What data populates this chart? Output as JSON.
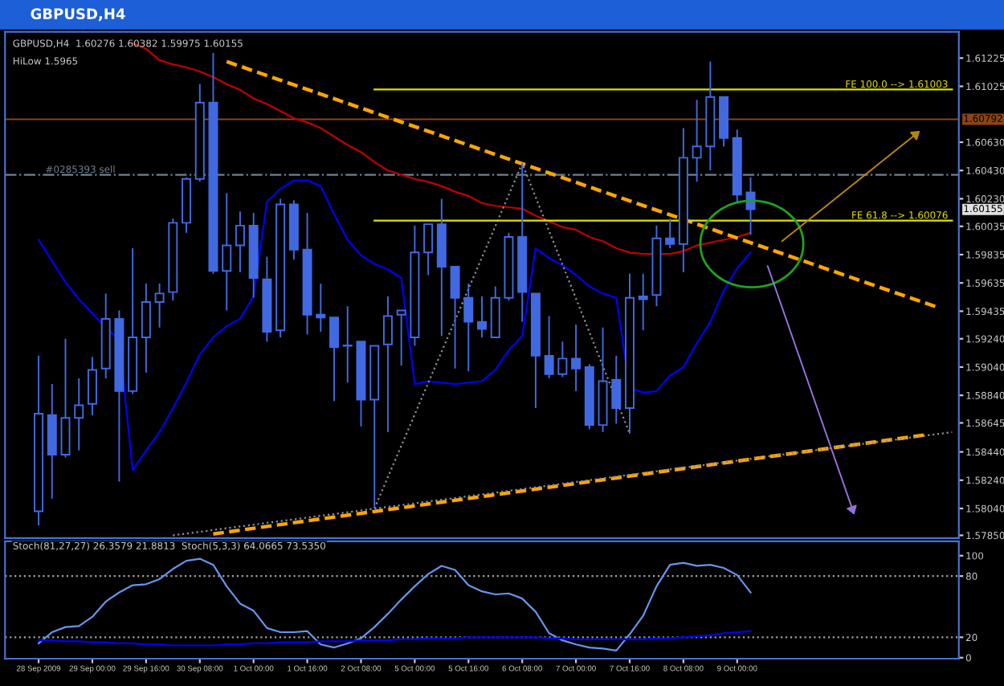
{
  "chart_data": [
    {
      "type": "candlestick",
      "title": "GBPUSD,H4",
      "color": "#4169e1",
      "tick_labels": "y",
      "legend": false,
      "grid": false,
      "annotations": [
        "GBPUSD,H4  1.60276 1.60382 1.59975 1.60155",
        "HiLow 1.5965",
        "1.60155"
      ],
      "categories": [
        null,
        null,
        null,
        null,
        null,
        null,
        null,
        null,
        null,
        null,
        null,
        null,
        null,
        null,
        null,
        null,
        null,
        null,
        null,
        null,
        null,
        null,
        null,
        null,
        null,
        null,
        null,
        null,
        null,
        null,
        null,
        null,
        null,
        null,
        null,
        null,
        null,
        null,
        null,
        null,
        null,
        null,
        null,
        null,
        null,
        null,
        null,
        null,
        null,
        null,
        null,
        null,
        null,
        null,
        null,
        null,
        null,
        null,
        null,
        null,
        null,
        null,
        null,
        null,
        null,
        null,
        null,
        null,
        null
      ],
      "ohlc": [
        [
          1.5802,
          1.5912,
          1.5792,
          1.5871
        ],
        [
          1.587,
          1.5892,
          1.5811,
          1.5842
        ],
        [
          1.5842,
          1.5924,
          1.584,
          1.5868
        ],
        [
          1.5868,
          1.5896,
          1.5845,
          1.5877
        ],
        [
          1.5878,
          1.5911,
          1.587,
          1.5902
        ],
        [
          1.5903,
          1.5956,
          1.5896,
          1.5938
        ],
        [
          1.5938,
          1.5944,
          1.5823,
          1.5887
        ],
        [
          1.5887,
          1.5988,
          1.5885,
          1.5925
        ],
        [
          1.5925,
          1.5963,
          1.59,
          1.595
        ],
        [
          1.595,
          1.5963,
          1.5932,
          1.5956
        ],
        [
          1.5957,
          1.6009,
          1.5951,
          1.6006
        ],
        [
          1.6006,
          1.6038,
          1.5999,
          1.6037
        ],
        [
          1.6037,
          1.6104,
          1.6035,
          1.6091
        ],
        [
          1.6091,
          1.6126,
          1.597,
          1.5972
        ],
        [
          1.5972,
          1.6027,
          1.5944,
          1.599
        ],
        [
          1.599,
          1.6014,
          1.5971,
          1.6004
        ],
        [
          1.6004,
          1.6013,
          1.5953,
          1.5967
        ],
        [
          1.5966,
          1.5982,
          1.5922,
          1.5929
        ],
        [
          1.593,
          1.6023,
          1.5925,
          1.6019
        ],
        [
          1.6019,
          1.6022,
          1.598,
          1.5987
        ],
        [
          1.5987,
          1.6013,
          1.5927,
          1.5941
        ],
        [
          1.5941,
          1.5963,
          1.5929,
          1.5939
        ],
        [
          1.5939,
          1.5939,
          1.588,
          1.5918
        ],
        [
          1.5919,
          1.5947,
          1.5893,
          1.5919
        ],
        [
          1.5922,
          1.5922,
          1.5862,
          1.5881
        ],
        [
          1.5881,
          1.5919,
          1.5804,
          1.5919
        ],
        [
          1.592,
          1.5954,
          1.5858,
          1.594
        ],
        [
          1.5941,
          1.5944,
          1.5905,
          1.5944
        ],
        [
          1.5925,
          1.6004,
          1.5919,
          1.5985
        ],
        [
          1.5985,
          1.6005,
          1.5969,
          1.6005
        ],
        [
          1.6005,
          1.6023,
          1.5926,
          1.5975
        ],
        [
          1.5975,
          1.5975,
          1.5903,
          1.5953
        ],
        [
          1.5953,
          1.5963,
          1.5901,
          1.5936
        ],
        [
          1.5936,
          1.5954,
          1.5925,
          1.5931
        ],
        [
          1.5925,
          1.5961,
          1.5925,
          1.5953
        ],
        [
          1.5953,
          1.5999,
          1.5951,
          1.5996
        ],
        [
          1.5996,
          1.6048,
          1.5936,
          1.5957
        ],
        [
          1.5956,
          1.5956,
          1.5875,
          1.5912
        ],
        [
          1.5912,
          1.594,
          1.5896,
          1.5899
        ],
        [
          1.5899,
          1.5922,
          1.5897,
          1.591
        ],
        [
          1.591,
          1.5934,
          1.5887,
          1.5903
        ],
        [
          1.5904,
          1.5906,
          1.586,
          1.5863
        ],
        [
          1.5863,
          1.5932,
          1.5858,
          1.5894
        ],
        [
          1.5895,
          1.5912,
          1.5864,
          1.5875
        ],
        [
          1.5875,
          1.597,
          1.5857,
          1.5953
        ],
        [
          1.5954,
          1.597,
          1.593,
          1.5952
        ],
        [
          1.5955,
          1.6004,
          1.5947,
          1.5995
        ],
        [
          1.5995,
          1.6009,
          1.5988,
          1.5991
        ],
        [
          1.5991,
          1.6073,
          1.5971,
          1.6052
        ],
        [
          1.6052,
          1.6093,
          1.6035,
          1.606
        ],
        [
          1.606,
          1.612,
          1.6043,
          1.6095
        ],
        [
          1.6095,
          1.6095,
          1.606,
          1.6066
        ],
        [
          1.6066,
          1.6072,
          1.6021,
          1.6026
        ],
        [
          1.60276,
          1.60382,
          1.59975,
          1.60155
        ],
        null,
        null,
        null,
        null,
        null,
        null,
        null,
        null,
        null,
        null,
        null,
        null,
        null,
        null,
        null
      ],
      "series": [
        {
          "type": "line",
          "color": "#c00000",
          "line_style": "solid",
          "values": [
            null,
            null,
            null,
            null,
            null,
            null,
            null,
            1.6133,
            1.6129,
            1.6121,
            1.6118,
            1.6116,
            1.6113,
            1.6109,
            1.6104,
            1.61,
            1.6094,
            1.609,
            1.6085,
            1.608,
            1.6077,
            1.6073,
            1.6067,
            1.6061,
            1.6056,
            1.6049,
            1.6043,
            1.604,
            1.6037,
            1.6035,
            1.6032,
            1.6028,
            1.6025,
            1.602,
            1.6018,
            1.6017,
            1.6016,
            1.6011,
            1.6007,
            1.6003,
            1.6001,
            1.5996,
            1.5993,
            1.5988,
            1.5985,
            1.5984,
            1.5984,
            1.5984,
            1.5986,
            1.599,
            1.5992,
            1.5994,
            1.5996,
            1.5999,
            null,
            null,
            null,
            null,
            null,
            null,
            null,
            null,
            null,
            null,
            null,
            null,
            null,
            null,
            null
          ]
        },
        {
          "type": "line",
          "color": "#0000ff",
          "line_style": "solid",
          "values": [
            1.5994,
            1.5979,
            1.5964,
            1.5952,
            1.5942,
            1.5932,
            1.5923,
            1.5831,
            1.5845,
            1.5858,
            1.5875,
            1.5893,
            1.5913,
            1.5925,
            1.5933,
            1.5938,
            1.5954,
            1.6021,
            1.603,
            1.6036,
            1.6036,
            1.6032,
            1.6012,
            1.5994,
            1.5983,
            1.5977,
            1.5973,
            1.5967,
            1.5892,
            1.5894,
            1.5893,
            1.5892,
            1.5893,
            1.5894,
            1.5902,
            1.5916,
            1.5926,
            1.5988,
            1.5981,
            1.5976,
            1.5969,
            1.5961,
            1.5956,
            1.5953,
            1.5889,
            1.5886,
            1.5887,
            1.5898,
            1.5904,
            1.5921,
            1.5936,
            1.5958,
            1.5974,
            1.5985,
            null,
            null,
            null,
            null,
            null,
            null,
            null,
            null,
            null,
            null,
            null,
            null,
            null,
            null,
            null
          ]
        },
        {
          "type": "line",
          "color": "#ffa500",
          "line_style": "dashed",
          "values": [
            null,
            null,
            null,
            null,
            null,
            null,
            null,
            null,
            null,
            null,
            null,
            null,
            null,
            null,
            1.612,
            null,
            null,
            null,
            null,
            null,
            null,
            null,
            null,
            null,
            null,
            null,
            null,
            null,
            null,
            null,
            null,
            null,
            null,
            null,
            null,
            null,
            null,
            null,
            null,
            null,
            null,
            null,
            null,
            null,
            null,
            null,
            null,
            null,
            null,
            null,
            null,
            null,
            null,
            null,
            null,
            null,
            null,
            null,
            null,
            null,
            null,
            null,
            null,
            null,
            null,
            null,
            null,
            1.5946,
            null
          ]
        },
        {
          "type": "line",
          "color": "#ffa500",
          "line_style": "dashed",
          "values": [
            null,
            null,
            null,
            null,
            null,
            null,
            null,
            null,
            null,
            null,
            null,
            null,
            null,
            1.5786,
            null,
            null,
            null,
            null,
            null,
            null,
            null,
            null,
            null,
            null,
            null,
            null,
            null,
            null,
            null,
            null,
            null,
            null,
            null,
            null,
            null,
            null,
            null,
            null,
            null,
            null,
            null,
            null,
            null,
            null,
            null,
            null,
            null,
            null,
            null,
            null,
            null,
            null,
            null,
            null,
            null,
            null,
            null,
            null,
            null,
            null,
            null,
            null,
            null,
            null,
            null,
            null,
            1.5856,
            null,
            null
          ]
        },
        {
          "type": "line",
          "color": "#909090",
          "line_style": "dotted",
          "values": [
            null,
            null,
            null,
            null,
            null,
            null,
            null,
            null,
            null,
            null,
            null,
            null,
            null,
            null,
            null,
            null,
            null,
            null,
            null,
            null,
            null,
            null,
            null,
            null,
            null,
            1.5804,
            null,
            null,
            null,
            null,
            null,
            null,
            null,
            null,
            null,
            null,
            1.6048,
            null,
            null,
            null,
            null,
            null,
            null,
            null,
            1.5857,
            null,
            null,
            null,
            null,
            null,
            null,
            null,
            null,
            null,
            null,
            null,
            null,
            null,
            null,
            null,
            null,
            null,
            null,
            null,
            null,
            null,
            null,
            null,
            null
          ]
        },
        {
          "type": "line",
          "color": "#909090",
          "line_style": "dotted",
          "values": [
            null,
            null,
            null,
            null,
            null,
            null,
            null,
            null,
            null,
            null,
            1.5785,
            null,
            null,
            null,
            null,
            null,
            null,
            null,
            null,
            null,
            null,
            null,
            null,
            null,
            null,
            null,
            null,
            null,
            null,
            null,
            null,
            null,
            null,
            null,
            null,
            null,
            null,
            null,
            null,
            null,
            null,
            null,
            null,
            null,
            null,
            null,
            null,
            null,
            null,
            null,
            null,
            null,
            null,
            null,
            null,
            null,
            null,
            null,
            null,
            null,
            null,
            null,
            null,
            null,
            null,
            null,
            null,
            null,
            1.5858
          ]
        },
        {
          "type": "line",
          "name": "FE 100.0 --> 1.61003",
          "color": "#e0e000",
          "line_style": "solid",
          "values": [
            null,
            null,
            null,
            null,
            null,
            null,
            null,
            null,
            null,
            null,
            null,
            null,
            null,
            null,
            null,
            null,
            null,
            null,
            null,
            null,
            null,
            null,
            null,
            null,
            null,
            1.61003,
            null,
            null,
            null,
            null,
            null,
            null,
            null,
            null,
            null,
            null,
            null,
            null,
            null,
            null,
            null,
            null,
            null,
            null,
            null,
            null,
            null,
            null,
            null,
            null,
            null,
            null,
            null,
            null,
            null,
            null,
            null,
            null,
            null,
            null,
            null,
            null,
            null,
            null,
            null,
            null,
            null,
            null,
            1.61003
          ]
        },
        {
          "type": "line",
          "name": "FE 61.8 --> 1.60076",
          "color": "#e0e000",
          "line_style": "solid",
          "values": [
            null,
            null,
            null,
            null,
            null,
            null,
            null,
            null,
            null,
            null,
            null,
            null,
            null,
            null,
            null,
            null,
            null,
            null,
            null,
            null,
            null,
            null,
            null,
            null,
            null,
            1.60076,
            null,
            null,
            null,
            null,
            null,
            null,
            null,
            null,
            null,
            null,
            null,
            null,
            null,
            null,
            null,
            null,
            null,
            null,
            null,
            null,
            null,
            null,
            null,
            null,
            null,
            null,
            null,
            null,
            null,
            null,
            null,
            null,
            null,
            null,
            null,
            null,
            null,
            null,
            null,
            null,
            null,
            null,
            1.60076
          ]
        }
      ],
      "ref_lines": [
        {
          "axis": "y",
          "value": 1.60792,
          "label": "1.60792",
          "color": "#8b4513",
          "line_style": "solid"
        },
        {
          "axis": "y",
          "value": 1.604,
          "label": "#0285393 sell",
          "color": "#708090",
          "line_style": "dashdot"
        }
      ],
      "ylim": [
        1.5783,
        1.6141
      ],
      "yticks": [
        1.61225,
        1.61025,
        {
          "value": 1.6063,
          "label": "1.60630"
        },
        {
          "value": 1.6043,
          "label": "1.60430"
        },
        {
          "value": 1.6023,
          "label": "1.60230"
        },
        1.60035,
        1.59835,
        1.59635,
        1.59435,
        {
          "value": 1.5924,
          "label": "1.59240"
        },
        {
          "value": 1.5904,
          "label": "1.59040"
        },
        {
          "value": 1.5884,
          "label": "1.58840"
        },
        1.58645,
        {
          "value": 1.5844,
          "label": "1.58440"
        },
        {
          "value": 1.5824,
          "label": "1.58240"
        },
        {
          "value": 1.5804,
          "label": "1.58040"
        },
        {
          "value": 1.5785,
          "label": "1.57850"
        }
      ]
    },
    {
      "type": "line",
      "title": "Stoch(81,27,27) 26.3579 21.8813  Stoch(5,3,3) 64.0665 73.5350",
      "legend": false,
      "grid": false,
      "categories": [
        "28 Sep 2009",
        null,
        null,
        null,
        "29 Sep 00:00",
        null,
        null,
        null,
        "29 Sep 16:00",
        null,
        null,
        null,
        "30 Sep 08:00",
        null,
        null,
        null,
        "1 Oct 00:00",
        null,
        null,
        null,
        "1 Oct 16:00",
        null,
        null,
        null,
        "2 Oct 08:00",
        null,
        null,
        null,
        "5 Oct 00:00",
        null,
        null,
        null,
        "5 Oct 16:00",
        null,
        null,
        null,
        "6 Oct 08:00",
        null,
        null,
        null,
        "7 Oct 00:00",
        null,
        null,
        null,
        "7 Oct 16:00",
        null,
        null,
        null,
        "8 Oct 08:00",
        null,
        null,
        null,
        "9 Oct 00:00",
        null,
        null,
        null,
        null,
        null,
        null,
        null,
        null,
        null,
        null,
        null,
        null,
        null,
        null,
        null,
        null
      ],
      "series": [
        {
          "color": "#6495ed",
          "line_style": "solid",
          "values": [
            14,
            25,
            30,
            31,
            40,
            55,
            64,
            71,
            72,
            77,
            87,
            95,
            97,
            91,
            70,
            53,
            46,
            29,
            25,
            25,
            26,
            13,
            10,
            14,
            19,
            30,
            43,
            57,
            70,
            82,
            90,
            86,
            71,
            65,
            62,
            63,
            58,
            45,
            24,
            17,
            13,
            10,
            9,
            7,
            23,
            41,
            70,
            91,
            93,
            90,
            91,
            88,
            81,
            64,
            null,
            null,
            null,
            null,
            null,
            null,
            null,
            null,
            null,
            null,
            null,
            null,
            null,
            null,
            null
          ]
        },
        {
          "color": "#0000ff",
          "line_style": "solid",
          "values": [
            17,
            17,
            16,
            16,
            15,
            15,
            14,
            14,
            13,
            13,
            12,
            12,
            12,
            12,
            13,
            13,
            14,
            14,
            15,
            15,
            15,
            16,
            16,
            16,
            17,
            17,
            17,
            18,
            18,
            19,
            19,
            19,
            20,
            20,
            20,
            20,
            20,
            20,
            19,
            19,
            18,
            18,
            18,
            18,
            18,
            18,
            19,
            19,
            20,
            21,
            22,
            24,
            25,
            26,
            null,
            null,
            null,
            null,
            null,
            null,
            null,
            null,
            null,
            null,
            null,
            null,
            null,
            null,
            null
          ]
        }
      ],
      "ref_lines": [
        {
          "axis": "y",
          "value": 20,
          "color": "#a0a0a0",
          "line_style": "dotted"
        },
        {
          "axis": "y",
          "value": 80,
          "color": "#a0a0a0",
          "line_style": "dotted"
        }
      ],
      "ylim": [
        -1,
        114
      ],
      "yticks": [
        0,
        20,
        80,
        100
      ]
    }
  ]
}
